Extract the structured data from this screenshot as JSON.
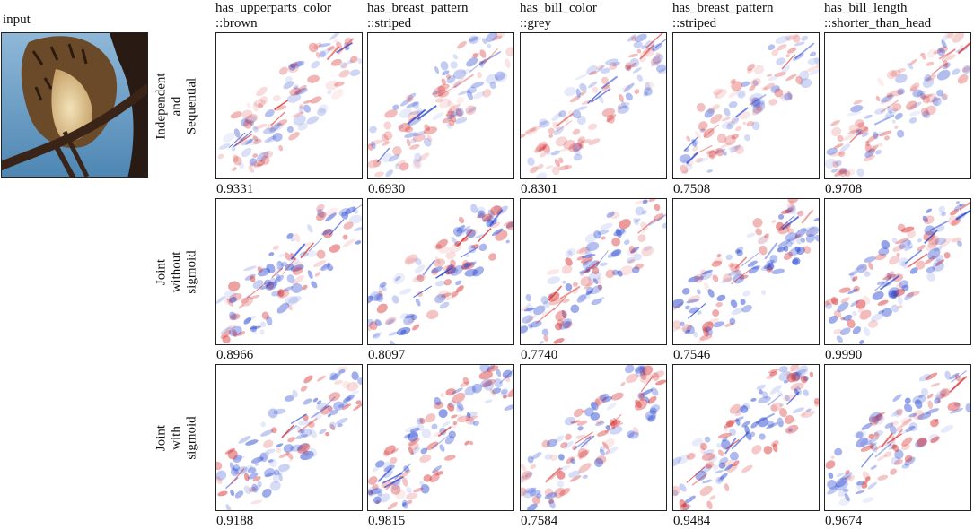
{
  "input_label": "input",
  "columns": [
    {
      "line1": "has_upperparts_color",
      "line2": "::brown"
    },
    {
      "line1": "has_breast_pattern",
      "line2": "::striped"
    },
    {
      "line1": "has_bill_color",
      "line2": "::grey"
    },
    {
      "line1": "has_breast_pattern",
      "line2": "::striped"
    },
    {
      "line1": "has_bill_length",
      "line2": "::shorter_than_head"
    }
  ],
  "rows": [
    {
      "lines": [
        "Independent",
        "and",
        "Sequential"
      ],
      "scores": [
        "0.9331",
        "0.6930",
        "0.8301",
        "0.7508",
        "0.9708"
      ]
    },
    {
      "lines": [
        "Joint",
        "without",
        "sigmoid"
      ],
      "scores": [
        "0.8966",
        "0.8097",
        "0.7740",
        "0.7546",
        "0.9990"
      ]
    },
    {
      "lines": [
        "Joint",
        "with",
        "sigmoid"
      ],
      "scores": [
        "0.9188",
        "0.9815",
        "0.7584",
        "0.9484",
        "0.9674"
      ]
    }
  ],
  "colors": {
    "positive": "#d62728",
    "negative": "#1f3fd0",
    "border": "#222222"
  }
}
